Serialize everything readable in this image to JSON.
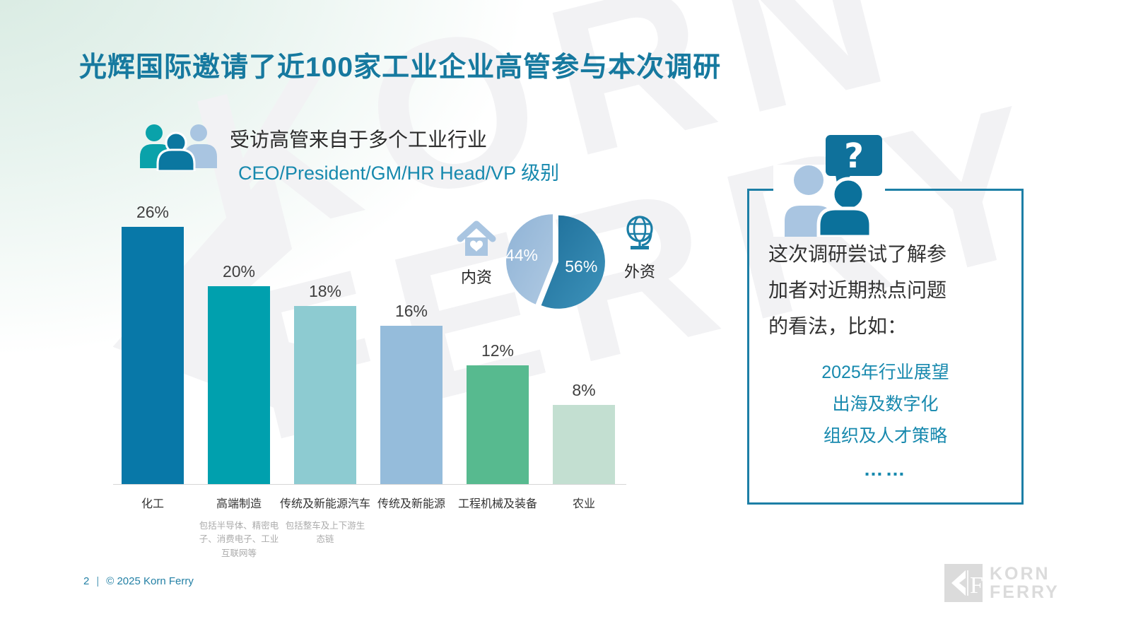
{
  "slide": {
    "title": "光辉国际邀请了近100家工业企业高管参与本次调研",
    "watermark": {
      "line1": "KORN",
      "line2": "FERRY"
    },
    "footer": {
      "page_number": "2",
      "separator": "|",
      "copyright": "© 2025 Korn Ferry"
    },
    "logo": {
      "line1": "KORN",
      "line2": "FERRY"
    }
  },
  "survey_header": {
    "heading": "受访高管来自于多个工业行业",
    "level_line": "CEO/President/GM/HR Head/VP 级别"
  },
  "pie_legend": {
    "domestic": {
      "label": "内资",
      "icon": "house-heart-icon"
    },
    "foreign": {
      "label": "外资",
      "icon": "globe-icon"
    }
  },
  "callout": {
    "intro_lines": [
      "这次调研尝试了解参",
      "加者对近期热点问题",
      "的看法，比如："
    ],
    "topics": [
      "2025年行业展望",
      "出海及数字化",
      "组织及人才策略"
    ],
    "ellipsis": "……",
    "border_color": "#1D7FA6",
    "topic_color": "#1789AE"
  },
  "colors": {
    "title_teal": "#16799F",
    "accent_teal": "#1789AE",
    "footer_teal": "#2380A5",
    "logo_gray": "#DBDBDB",
    "axis_gray": "#D6D6D6"
  },
  "chart_data": [
    {
      "type": "bar",
      "title": "受访高管来自于多个工业行业",
      "subtitle": "CEO/President/GM/HR Head/VP 级别",
      "categories": [
        "化工",
        "高端制造",
        "传统及新能源汽车",
        "传统及新能源",
        "工程机械及装备",
        "农业"
      ],
      "values": [
        26,
        20,
        18,
        16,
        12,
        8
      ],
      "value_labels": [
        "26%",
        "20%",
        "18%",
        "16%",
        "12%",
        "8%"
      ],
      "category_notes": [
        "",
        "包括半导体、精密电子、消费电子、工业互联网等",
        "包括整车及上下游生态链",
        "",
        "",
        ""
      ],
      "bar_colors": [
        "#0878A8",
        "#00A0AE",
        "#8DCBD1",
        "#95BCDB",
        "#57BA8F",
        "#C3DFD1"
      ],
      "unit": "%",
      "ylim": [
        0,
        28
      ],
      "grid": false,
      "value_label_position": "above-bar"
    },
    {
      "type": "pie",
      "start": "top",
      "direction": "clockwise",
      "label_color": "#FFFFFF",
      "slices": [
        {
          "label": "外资",
          "value": 56,
          "display": "56%",
          "color": "#1D6E99",
          "color_end": "#3E93BB"
        },
        {
          "label": "内资",
          "value": 44,
          "display": "44%",
          "color": "#8FB3D6",
          "color_end": "#AFC9E2"
        }
      ]
    }
  ]
}
